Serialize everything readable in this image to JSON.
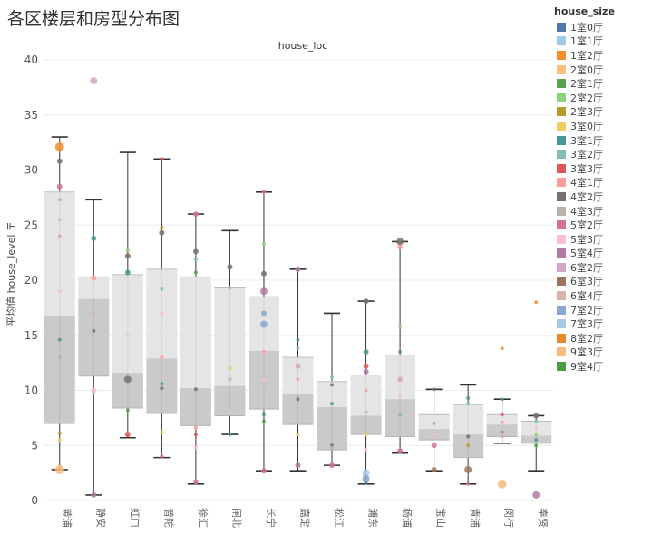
{
  "page": {
    "title": "各区楼层和房型分布图"
  },
  "legend": {
    "title": "house_size",
    "items": [
      {
        "label": "1室0厅",
        "color": "#4e79a7"
      },
      {
        "label": "1室1厅",
        "color": "#a0cbe8"
      },
      {
        "label": "1室2厅",
        "color": "#f28e2b"
      },
      {
        "label": "2室0厅",
        "color": "#ffbe7d"
      },
      {
        "label": "2室1厅",
        "color": "#59a14f"
      },
      {
        "label": "2室2厅",
        "color": "#8cd17d"
      },
      {
        "label": "2室3厅",
        "color": "#b6992d"
      },
      {
        "label": "3室0厅",
        "color": "#f1ce63"
      },
      {
        "label": "3室1厅",
        "color": "#499894"
      },
      {
        "label": "3室2厅",
        "color": "#86bcb6"
      },
      {
        "label": "3室3厅",
        "color": "#e15759"
      },
      {
        "label": "4室1厅",
        "color": "#ff9d9a"
      },
      {
        "label": "4室2厅",
        "color": "#79706e"
      },
      {
        "label": "4室3厅",
        "color": "#bab0ac"
      },
      {
        "label": "5室2厅",
        "color": "#d37295"
      },
      {
        "label": "5室3厅",
        "color": "#fabfd2"
      },
      {
        "label": "5室4厅",
        "color": "#b07aa1"
      },
      {
        "label": "6室2厅",
        "color": "#d4a6c8"
      },
      {
        "label": "6室3厅",
        "color": "#9d7660"
      },
      {
        "label": "6室4厅",
        "color": "#d7b5a6"
      },
      {
        "label": "7室2厅",
        "color": "#8aa5d0"
      },
      {
        "label": "7室3厅",
        "color": "#a8c8e8"
      },
      {
        "label": "8室2厅",
        "color": "#e8882a"
      },
      {
        "label": "9室3厅",
        "color": "#f5bc7e"
      },
      {
        "label": "9室4厅",
        "color": "#4a9a44"
      }
    ]
  },
  "chart_data": {
    "type": "box",
    "title": "house_loc",
    "ylabel": "平均值 house_level 〒",
    "ylim": [
      0,
      40
    ],
    "yticks": [
      0,
      5,
      10,
      15,
      20,
      25,
      30,
      35,
      40
    ],
    "categories": [
      "黄浦",
      "静安",
      "虹口",
      "普陀",
      "徐汇",
      "闸北",
      "长宁",
      "嘉定",
      "松江",
      "浦东",
      "杨浦",
      "宝山",
      "青浦",
      "闵行",
      "奉贤"
    ],
    "boxes": [
      {
        "min": 2.8,
        "q1": 7.0,
        "median": 16.8,
        "q3": 28.0,
        "max": 33.0
      },
      {
        "min": 0.5,
        "q1": 11.3,
        "median": 18.3,
        "q3": 20.3,
        "max": 27.3
      },
      {
        "min": 5.7,
        "q1": 8.4,
        "median": 11.6,
        "q3": 20.5,
        "max": 31.6
      },
      {
        "min": 3.9,
        "q1": 7.9,
        "median": 12.9,
        "q3": 21.0,
        "max": 31.0
      },
      {
        "min": 1.5,
        "q1": 6.8,
        "median": 10.2,
        "q3": 20.3,
        "max": 26.0
      },
      {
        "min": 6.0,
        "q1": 7.7,
        "median": 10.4,
        "q3": 19.3,
        "max": 24.5
      },
      {
        "min": 2.7,
        "q1": 8.3,
        "median": 13.6,
        "q3": 18.5,
        "max": 28.0
      },
      {
        "min": 2.7,
        "q1": 6.9,
        "median": 9.7,
        "q3": 13.0,
        "max": 21.0
      },
      {
        "min": 3.2,
        "q1": 4.6,
        "median": 8.5,
        "q3": 10.8,
        "max": 17.0
      },
      {
        "min": 1.5,
        "q1": 6.0,
        "median": 7.7,
        "q3": 11.4,
        "max": 18.1
      },
      {
        "min": 4.3,
        "q1": 5.8,
        "median": 9.2,
        "q3": 13.2,
        "max": 23.5
      },
      {
        "min": 2.7,
        "q1": 5.5,
        "median": 6.5,
        "q3": 7.8,
        "max": 10.1
      },
      {
        "min": 1.5,
        "q1": 3.9,
        "median": 6.0,
        "q3": 8.7,
        "max": 10.5
      },
      {
        "min": 5.2,
        "q1": 5.8,
        "median": 6.9,
        "q3": 7.8,
        "max": 9.2
      },
      {
        "min": 2.7,
        "q1": 5.2,
        "median": 5.9,
        "q3": 7.2,
        "max": 7.7
      }
    ],
    "points": [
      [
        {
          "y": 32.1,
          "c": "#f28e2b",
          "s": 5
        },
        {
          "y": 30.8,
          "c": "#79706e",
          "s": 3
        },
        {
          "y": 28.5,
          "c": "#d37295",
          "s": 3
        },
        {
          "y": 27.3,
          "c": "#bab0ac",
          "s": 2
        },
        {
          "y": 25.5,
          "c": "#d7b5a6",
          "s": 2
        },
        {
          "y": 24.0,
          "c": "#d4a6c8",
          "s": 2
        },
        {
          "y": 19.0,
          "c": "#fabfd2",
          "s": 2
        },
        {
          "y": 14.6,
          "c": "#499894",
          "s": 2
        },
        {
          "y": 13.0,
          "c": "#bab0ac",
          "s": 2
        },
        {
          "y": 6.1,
          "c": "#b6992d",
          "s": 2
        },
        {
          "y": 5.5,
          "c": "#f1ce63",
          "s": 2
        },
        {
          "y": 2.8,
          "c": "#f5bc7e",
          "s": 5
        }
      ],
      [
        {
          "y": 38.1,
          "c": "#d4a6c8",
          "s": 4
        },
        {
          "y": 23.8,
          "c": "#499894",
          "s": 3
        },
        {
          "y": 20.2,
          "c": "#ff9d9a",
          "s": 3
        },
        {
          "y": 17.0,
          "c": "#d7b5a6",
          "s": 2
        },
        {
          "y": 15.4,
          "c": "#79706e",
          "s": 2
        },
        {
          "y": 10.0,
          "c": "#fabfd2",
          "s": 3
        },
        {
          "y": 0.5,
          "c": "#b07aa1",
          "s": 3
        }
      ],
      [
        {
          "y": 22.7,
          "c": "#8cd17d",
          "s": 2
        },
        {
          "y": 22.2,
          "c": "#79706e",
          "s": 3
        },
        {
          "y": 20.7,
          "c": "#499894",
          "s": 3
        },
        {
          "y": 15.0,
          "c": "#fabfd2",
          "s": 2
        },
        {
          "y": 11.0,
          "c": "#79706e",
          "s": 4
        },
        {
          "y": 8.2,
          "c": "#59a14f",
          "s": 2
        },
        {
          "y": 6.0,
          "c": "#e15759",
          "s": 3
        }
      ],
      [
        {
          "y": 31.0,
          "c": "#e15759",
          "s": 2
        },
        {
          "y": 24.8,
          "c": "#b6992d",
          "s": 2
        },
        {
          "y": 24.3,
          "c": "#79706e",
          "s": 3
        },
        {
          "y": 19.2,
          "c": "#86bcb6",
          "s": 2
        },
        {
          "y": 17.0,
          "c": "#fabfd2",
          "s": 2
        },
        {
          "y": 13.0,
          "c": "#ff9d9a",
          "s": 2
        },
        {
          "y": 10.6,
          "c": "#499894",
          "s": 2
        },
        {
          "y": 10.2,
          "c": "#79706e",
          "s": 2
        },
        {
          "y": 6.2,
          "c": "#f1ce63",
          "s": 2
        },
        {
          "y": 4.0,
          "c": "#d37295",
          "s": 2
        }
      ],
      [
        {
          "y": 26.0,
          "c": "#d37295",
          "s": 3
        },
        {
          "y": 22.6,
          "c": "#79706e",
          "s": 3
        },
        {
          "y": 21.9,
          "c": "#86bcb6",
          "s": 2
        },
        {
          "y": 20.7,
          "c": "#59a14f",
          "s": 2
        },
        {
          "y": 10.1,
          "c": "#79706e",
          "s": 2
        },
        {
          "y": 6.6,
          "c": "#ff9d9a",
          "s": 2
        },
        {
          "y": 6.0,
          "c": "#e15759",
          "s": 2
        },
        {
          "y": 4.8,
          "c": "#fabfd2",
          "s": 2
        },
        {
          "y": 1.7,
          "c": "#d37295",
          "s": 3
        }
      ],
      [
        {
          "y": 21.2,
          "c": "#79706e",
          "s": 3
        },
        {
          "y": 19.3,
          "c": "#8cd17d",
          "s": 2
        },
        {
          "y": 12.0,
          "c": "#f1ce63",
          "s": 2
        },
        {
          "y": 11.0,
          "c": "#bab0ac",
          "s": 2
        },
        {
          "y": 8.0,
          "c": "#fabfd2",
          "s": 2
        },
        {
          "y": 6.0,
          "c": "#499894",
          "s": 2
        }
      ],
      [
        {
          "y": 28.0,
          "c": "#d37295",
          "s": 2
        },
        {
          "y": 23.3,
          "c": "#8cd17d",
          "s": 2
        },
        {
          "y": 20.6,
          "c": "#79706e",
          "s": 3
        },
        {
          "y": 19.0,
          "c": "#b07aa1",
          "s": 4
        },
        {
          "y": 17.0,
          "c": "#8aa5d0",
          "s": 3
        },
        {
          "y": 16.0,
          "c": "#8aa5d0",
          "s": 4
        },
        {
          "y": 13.5,
          "c": "#ff9d9a",
          "s": 2
        },
        {
          "y": 11.0,
          "c": "#fabfd2",
          "s": 2
        },
        {
          "y": 7.8,
          "c": "#499894",
          "s": 2
        },
        {
          "y": 7.2,
          "c": "#59a14f",
          "s": 2
        },
        {
          "y": 2.7,
          "c": "#d37295",
          "s": 3
        }
      ],
      [
        {
          "y": 21.0,
          "c": "#b07aa1",
          "s": 3
        },
        {
          "y": 14.6,
          "c": "#499894",
          "s": 2
        },
        {
          "y": 13.8,
          "c": "#86bcb6",
          "s": 2
        },
        {
          "y": 12.2,
          "c": "#d4a6c8",
          "s": 3
        },
        {
          "y": 11.0,
          "c": "#ff9d9a",
          "s": 2
        },
        {
          "y": 9.2,
          "c": "#79706e",
          "s": 2
        },
        {
          "y": 6.0,
          "c": "#f1ce63",
          "s": 2
        },
        {
          "y": 3.2,
          "c": "#b07aa1",
          "s": 3
        }
      ],
      [
        {
          "y": 11.2,
          "c": "#86bcb6",
          "s": 2
        },
        {
          "y": 10.5,
          "c": "#79706e",
          "s": 2
        },
        {
          "y": 8.8,
          "c": "#499894",
          "s": 2
        },
        {
          "y": 5.0,
          "c": "#79706e",
          "s": 2
        },
        {
          "y": 4.8,
          "c": "#bab0ac",
          "s": 2
        },
        {
          "y": 3.2,
          "c": "#d37295",
          "s": 3
        }
      ],
      [
        {
          "y": 18.1,
          "c": "#79706e",
          "s": 3
        },
        {
          "y": 13.5,
          "c": "#499894",
          "s": 3
        },
        {
          "y": 12.2,
          "c": "#e15759",
          "s": 3
        },
        {
          "y": 11.7,
          "c": "#b07aa1",
          "s": 3
        },
        {
          "y": 10.0,
          "c": "#ff9d9a",
          "s": 2
        },
        {
          "y": 8.0,
          "c": "#d4a6c8",
          "s": 2
        },
        {
          "y": 6.0,
          "c": "#f1ce63",
          "s": 2
        },
        {
          "y": 4.6,
          "c": "#fabfd2",
          "s": 2
        },
        {
          "y": 2.5,
          "c": "#a0cbe8",
          "s": 4
        },
        {
          "y": 2.0,
          "c": "#8aa5d0",
          "s": 4
        },
        {
          "y": 1.6,
          "c": "#4e79a7",
          "s": 2
        }
      ],
      [
        {
          "y": 23.5,
          "c": "#79706e",
          "s": 4
        },
        {
          "y": 23.0,
          "c": "#ff9d9a",
          "s": 3
        },
        {
          "y": 15.8,
          "c": "#8cd17d",
          "s": 2
        },
        {
          "y": 13.5,
          "c": "#499894",
          "s": 2
        },
        {
          "y": 11.0,
          "c": "#d4a6c8",
          "s": 3
        },
        {
          "y": 9.5,
          "c": "#fabfd2",
          "s": 2
        },
        {
          "y": 7.8,
          "c": "#86bcb6",
          "s": 2
        },
        {
          "y": 4.5,
          "c": "#d37295",
          "s": 3
        }
      ],
      [
        {
          "y": 10.1,
          "c": "#79706e",
          "s": 2
        },
        {
          "y": 7.0,
          "c": "#86bcb6",
          "s": 2
        },
        {
          "y": 6.0,
          "c": "#fabfd2",
          "s": 2
        },
        {
          "y": 5.0,
          "c": "#d37295",
          "s": 3
        },
        {
          "y": 2.8,
          "c": "#9d7660",
          "s": 3
        }
      ],
      [
        {
          "y": 9.3,
          "c": "#499894",
          "s": 2
        },
        {
          "y": 8.8,
          "c": "#86bcb6",
          "s": 2
        },
        {
          "y": 5.8,
          "c": "#79706e",
          "s": 2
        },
        {
          "y": 5.0,
          "c": "#b6992d",
          "s": 2
        },
        {
          "y": 2.8,
          "c": "#9d7660",
          "s": 4
        },
        {
          "y": 1.5,
          "c": "#d37295",
          "s": 2
        }
      ],
      [
        {
          "y": 13.8,
          "c": "#f28e2b",
          "s": 2
        },
        {
          "y": 9.2,
          "c": "#499894",
          "s": 2
        },
        {
          "y": 7.8,
          "c": "#e15759",
          "s": 2
        },
        {
          "y": 7.1,
          "c": "#ff9d9a",
          "s": 2
        },
        {
          "y": 6.2,
          "c": "#b07aa1",
          "s": 2
        },
        {
          "y": 5.8,
          "c": "#d4a6c8",
          "s": 2
        },
        {
          "y": 1.5,
          "c": "#f5bc7e",
          "s": 5
        }
      ],
      [
        {
          "y": 18.0,
          "c": "#f28e2b",
          "s": 2
        },
        {
          "y": 7.7,
          "c": "#79706e",
          "s": 3
        },
        {
          "y": 7.2,
          "c": "#86bcb6",
          "s": 2
        },
        {
          "y": 6.5,
          "c": "#fabfd2",
          "s": 2
        },
        {
          "y": 6.0,
          "c": "#8cd17d",
          "s": 2
        },
        {
          "y": 5.5,
          "c": "#499894",
          "s": 2
        },
        {
          "y": 5.0,
          "c": "#59a14f",
          "s": 2
        },
        {
          "y": 0.5,
          "c": "#b07aa1",
          "s": 4
        }
      ]
    ]
  }
}
